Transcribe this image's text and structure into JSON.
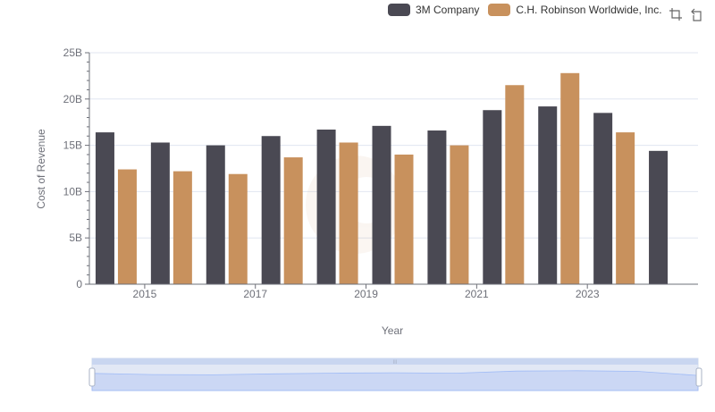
{
  "legend": [
    {
      "name": "3M Company",
      "color": "#4a4953"
    },
    {
      "name": "C.H. Robinson Worldwide, Inc.",
      "color": "#c8915d"
    }
  ],
  "toolbox": {
    "icons": [
      "zoom-icon",
      "zoom-reset-icon"
    ]
  },
  "chart_data": {
    "type": "bar",
    "xlabel": "Year",
    "ylabel": "Cost of Revenue",
    "ylim": [
      0,
      25000000000
    ],
    "yticks": [
      "0",
      "5B",
      "10B",
      "15B",
      "20B",
      "25B"
    ],
    "x_tick_labels": [
      "2015",
      "2017",
      "2019",
      "2021",
      "2023"
    ],
    "categories": [
      "2014",
      "2015",
      "2016",
      "2017",
      "2018",
      "2019",
      "2020",
      "2021",
      "2022",
      "2023",
      "2024"
    ],
    "grid": true,
    "legend_position": "top-right",
    "series": [
      {
        "name": "3M Company",
        "color": "#4a4953",
        "values": [
          16400000000,
          15300000000,
          15000000000,
          16000000000,
          16700000000,
          17100000000,
          16600000000,
          18800000000,
          19200000000,
          18500000000,
          14400000000
        ]
      },
      {
        "name": "C.H. Robinson Worldwide, Inc.",
        "color": "#c8915d",
        "values": [
          12400000000,
          12200000000,
          11900000000,
          13700000000,
          15300000000,
          14000000000,
          15000000000,
          21500000000,
          22800000000,
          16400000000,
          null
        ]
      }
    ]
  }
}
